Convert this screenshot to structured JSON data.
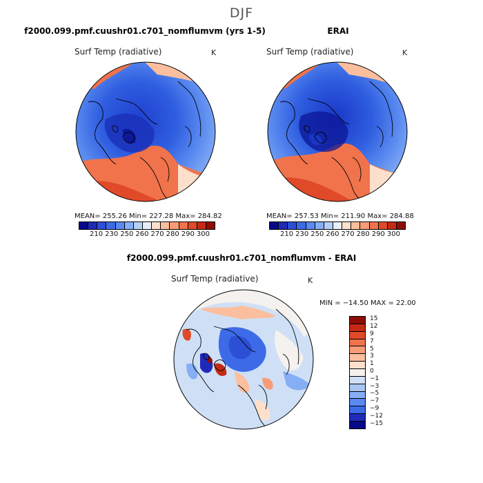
{
  "season": "DJF",
  "panels": [
    {
      "title": "f2000.099.pmf.cuushr01.c701_nomflumvm (yrs 1-5)",
      "variable": "Surf Temp (radiative)",
      "units": "K",
      "stats": "MEAN= 255.26   Min= 227.28   Max= 284.82",
      "mean": 255.26,
      "min": 227.28,
      "max": 284.82
    },
    {
      "title": "ERAI",
      "variable": "Surf Temp (radiative)",
      "units": "K",
      "stats": "MEAN= 257.53   Min= 211.90   Max= 284.88",
      "mean": 257.53,
      "min": 211.9,
      "max": 284.88
    },
    {
      "title": "f2000.099.pmf.cuushr01.c701_nomflumvm - ERAI",
      "variable": "Surf Temp (radiative)",
      "units": "K",
      "stats": "MIN = −14.50  MAX =  22.00",
      "min": -14.5,
      "max": 22.0
    }
  ],
  "abs_colorbar": {
    "ticks": [
      "210",
      "230",
      "250",
      "260",
      "270",
      "280",
      "290",
      "300"
    ],
    "colors": [
      "#08088a",
      "#1f2bb8",
      "#2d4fd6",
      "#3d6be8",
      "#5a8af0",
      "#86aef5",
      "#b5d0f8",
      "#e8eef8",
      "#fde0cc",
      "#fbbf9e",
      "#f89c78",
      "#f0734c",
      "#e04a28",
      "#c42a14",
      "#8e0d06"
    ]
  },
  "diff_colorbar": {
    "labels": [
      "15",
      "12",
      "9",
      "7",
      "5",
      "3",
      "1",
      "0",
      "−1",
      "−3",
      "−5",
      "−7",
      "−9",
      "−12",
      "−15"
    ],
    "colors": [
      "#8e0d06",
      "#c42a14",
      "#e04a28",
      "#f0734c",
      "#f89c78",
      "#fbbf9e",
      "#fde0cc",
      "#f4f1ee",
      "#cfe0f6",
      "#a9c6f3",
      "#86aef5",
      "#5a8af0",
      "#3d6be8",
      "#1f2bb8",
      "#08088a"
    ]
  }
}
